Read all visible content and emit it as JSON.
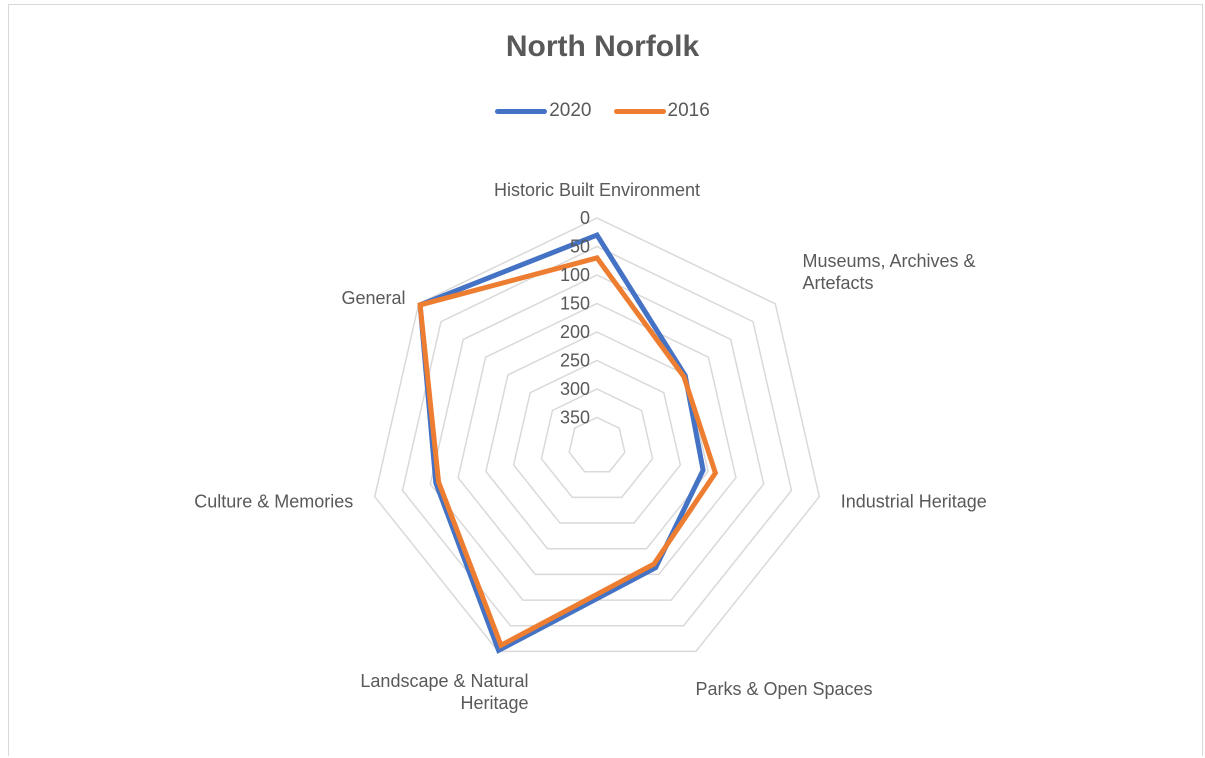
{
  "chart_data": {
    "type": "radar",
    "title": "North Norfolk",
    "categories": [
      "Historic Built Environment",
      "Museums, Archives & Artefacts",
      "Industrial Heritage",
      "Parks & Open Spaces",
      "Landscape & Natural Heritage",
      "Culture & Memories",
      "General"
    ],
    "category_lines": [
      [
        "Historic Built Environment"
      ],
      [
        "Museums, Archives &",
        "Artefacts"
      ],
      [
        "Industrial Heritage"
      ],
      [
        "Parks & Open Spaces"
      ],
      [
        "Landscape & Natural",
        "Heritage"
      ],
      [
        "Culture & Memories"
      ],
      [
        "General"
      ]
    ],
    "axis": {
      "min": 0,
      "max": 400,
      "reversed": true,
      "ticks": [
        0,
        50,
        100,
        150,
        200,
        250,
        300,
        350
      ]
    },
    "series": [
      {
        "name": "2020",
        "color": "#4472C4",
        "values": [
          30,
          202,
          209,
          163,
          2,
          110,
          3
        ]
      },
      {
        "name": "2016",
        "color": "#ED7D31",
        "values": [
          70,
          205,
          187,
          170,
          12,
          115,
          3
        ]
      }
    ],
    "legend_position": "top",
    "grid": true
  },
  "colors": {
    "grid": "#d9d9d9",
    "text": "#595959"
  }
}
